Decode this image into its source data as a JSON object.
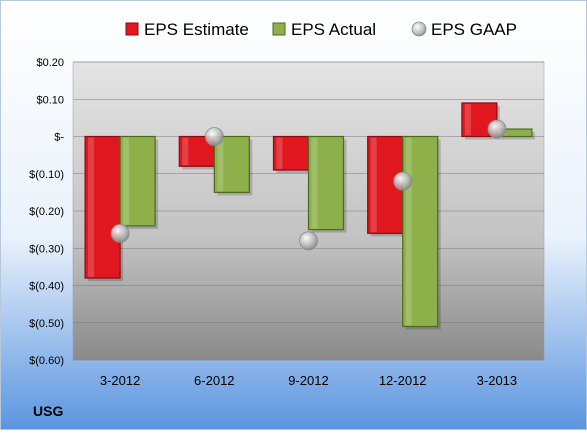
{
  "company": "USG",
  "colors": {
    "estimate_fill": "#e0171f",
    "estimate_stroke": "#8b0a10",
    "actual_fill": "#8db04a",
    "actual_stroke": "#4d6a1e",
    "gaap_fill": "#b4b4b4",
    "bg_top": "#ffffff",
    "bg_bottom": "#5b95e0",
    "plot_top": "#e4e4e4",
    "plot_bottom": "#8a8a8a"
  },
  "chart_data": {
    "type": "bar",
    "title": "",
    "xlabel": "",
    "ylabel": "",
    "categories": [
      "3-2012",
      "6-2012",
      "9-2012",
      "12-2012",
      "3-2013"
    ],
    "series": [
      {
        "name": "EPS Estimate",
        "kind": "bar",
        "values": [
          -0.38,
          -0.08,
          -0.09,
          -0.26,
          0.09
        ]
      },
      {
        "name": "EPS Actual",
        "kind": "bar",
        "values": [
          -0.24,
          -0.15,
          -0.25,
          -0.51,
          0.02
        ]
      },
      {
        "name": "EPS GAAP",
        "kind": "marker",
        "values": [
          -0.26,
          0.0,
          -0.28,
          -0.12,
          0.02
        ]
      }
    ],
    "ylim": [
      -0.6,
      0.2
    ],
    "yticks": [
      0.2,
      0.1,
      0.0,
      -0.1,
      -0.2,
      -0.3,
      -0.4,
      -0.5,
      -0.6
    ],
    "ytick_labels": [
      "$0.20",
      "$0.10",
      "$-",
      "$(0.10)",
      "$(0.20)",
      "$(0.30)",
      "$(0.40)",
      "$(0.50)",
      "$(0.60)"
    ],
    "grid": true,
    "legend_position": "top"
  }
}
